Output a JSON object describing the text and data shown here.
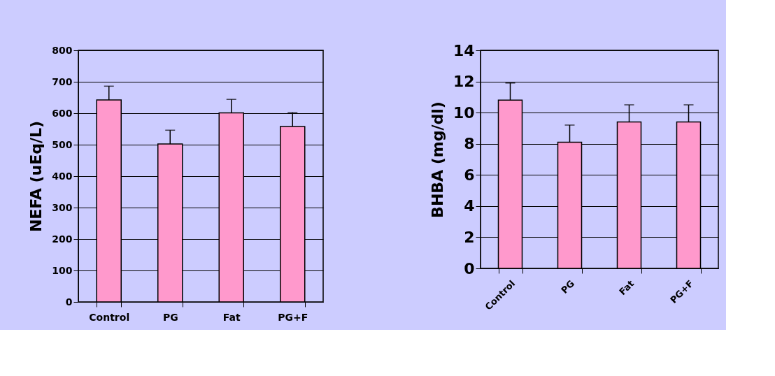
{
  "chart_data": [
    {
      "type": "bar",
      "ylabel": "NEFA (uEq/L)",
      "categories": [
        "Control",
        "PG",
        "Fat",
        "PG+F"
      ],
      "values": [
        642,
        502,
        601,
        558
      ],
      "errors": [
        [
          642,
          686
        ],
        [
          502,
          546
        ],
        [
          601,
          644
        ],
        [
          558,
          602
        ]
      ],
      "color": "#ff99cc",
      "ylim": [
        0,
        800
      ],
      "yticks": [
        0,
        100,
        200,
        300,
        400,
        500,
        600,
        700,
        800
      ],
      "grid": "y"
    },
    {
      "type": "bar",
      "ylabel": "BHBA (mg/dl)",
      "categories": [
        "Control",
        "PG",
        "Fat",
        "PG+F"
      ],
      "values": [
        10.8,
        8.1,
        9.4,
        9.4
      ],
      "errors": [
        [
          10.8,
          11.9
        ],
        [
          8.1,
          9.2
        ],
        [
          9.4,
          10.5
        ],
        [
          9.4,
          10.5
        ]
      ],
      "color": "#ff99cc",
      "ylim": [
        0,
        14
      ],
      "yticks": [
        0,
        2,
        4,
        6,
        8,
        10,
        12,
        14
      ],
      "grid": "y"
    }
  ]
}
